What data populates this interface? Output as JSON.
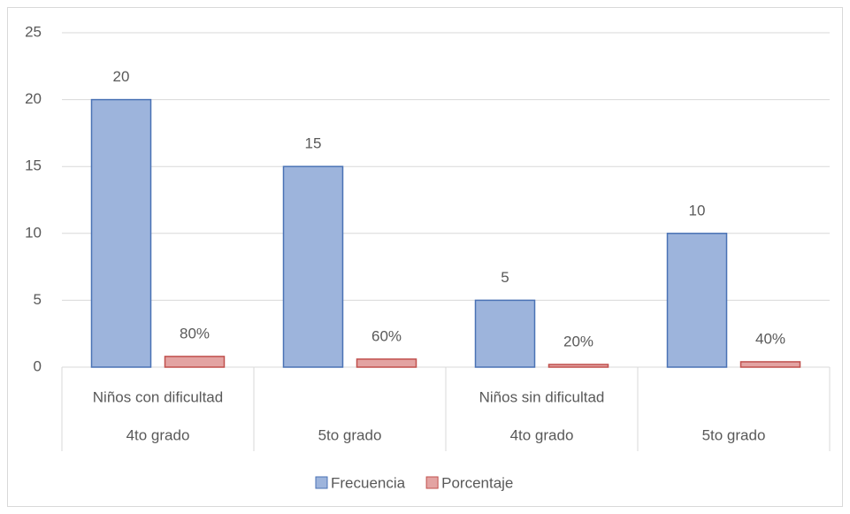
{
  "chart_data": {
    "type": "bar",
    "categories": [
      "4to grado",
      "5to grado",
      "4to grado",
      "5to grado"
    ],
    "group_labels": [
      "Niños con dificultad",
      null,
      "Niños sin dificultad",
      null
    ],
    "series": [
      {
        "name": "Frecuencia",
        "color": "#9db4dc",
        "edge_color": "#4a72b5",
        "values": [
          20,
          15,
          5,
          10
        ]
      },
      {
        "name": "Porcentaje",
        "color": "#e3a3a2",
        "edge_color": "#c0504d",
        "values": [
          0.8,
          0.6,
          0.2,
          0.4
        ],
        "value_labels": [
          "80%",
          "60%",
          "20%",
          "40%"
        ]
      }
    ],
    "ylim": [
      0,
      25
    ],
    "yticks": [
      0,
      5,
      10,
      15,
      20,
      25
    ],
    "grid": true,
    "legend": "bottom"
  }
}
